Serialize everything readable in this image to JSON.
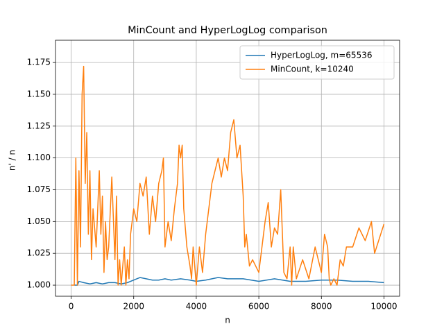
{
  "chart_data": {
    "type": "line",
    "title": "MinCount and HyperLogLog comparison",
    "x_label": "n",
    "y_label": "n' / n",
    "xlim": [
      -500,
      10500
    ],
    "xticks": [
      0,
      2000,
      4000,
      6000,
      8000,
      10000
    ],
    "ylim": [
      0.9913,
      1.1925
    ],
    "yticks": [
      {
        "value": 1.0,
        "label": "1.000"
      },
      {
        "value": 1.025,
        "label": "1.025"
      },
      {
        "value": 1.05,
        "label": "1.050"
      },
      {
        "value": 1.075,
        "label": "1.075"
      },
      {
        "value": 1.1,
        "label": "1.100"
      },
      {
        "value": 1.125,
        "label": "1.125"
      },
      {
        "value": 1.15,
        "label": "1.150"
      },
      {
        "value": 1.175,
        "label": "1.175"
      }
    ],
    "grid": true,
    "legend": "upper right",
    "series": [
      {
        "name": "HyperLogLog, m=65536",
        "color": "#1f77b4",
        "x": [
          100,
          200,
          250,
          400,
          600,
          800,
          1000,
          1200,
          1400,
          1600,
          1800,
          2000,
          2200,
          2400,
          2600,
          2800,
          3000,
          3200,
          3500,
          3800,
          4000,
          4300,
          4700,
          5000,
          5500,
          6000,
          6500,
          7000,
          7500,
          8000,
          8500,
          9000,
          9500,
          10000
        ],
        "values": [
          1.0,
          1.0,
          1.003,
          1.002,
          1.001,
          1.002,
          1.001,
          1.002,
          1.002,
          1.001,
          1.002,
          1.004,
          1.006,
          1.005,
          1.004,
          1.004,
          1.005,
          1.004,
          1.005,
          1.004,
          1.003,
          1.004,
          1.006,
          1.005,
          1.005,
          1.003,
          1.005,
          1.003,
          1.003,
          1.004,
          1.004,
          1.003,
          1.003,
          1.002
        ]
      },
      {
        "name": "MinCount, k=10240",
        "color": "#ff7f0e",
        "x": [
          0,
          100,
          150,
          200,
          250,
          300,
          350,
          400,
          450,
          500,
          550,
          600,
          650,
          700,
          800,
          900,
          950,
          1000,
          1050,
          1100,
          1150,
          1200,
          1300,
          1400,
          1450,
          1500,
          1550,
          1600,
          1700,
          1750,
          1800,
          1850,
          1900,
          2000,
          2100,
          2200,
          2300,
          2400,
          2500,
          2600,
          2700,
          2800,
          2900,
          2950,
          3000,
          3100,
          3200,
          3300,
          3400,
          3450,
          3500,
          3550,
          3600,
          3700,
          3800,
          3850,
          3900,
          4000,
          4100,
          4200,
          4300,
          4400,
          4500,
          4600,
          4700,
          4800,
          4900,
          5000,
          5100,
          5200,
          5300,
          5400,
          5500,
          5550,
          5600,
          5700,
          5800,
          6000,
          6100,
          6200,
          6300,
          6400,
          6500,
          6600,
          6700,
          6800,
          6900,
          7000,
          7050,
          7100,
          7200,
          7400,
          7600,
          7800,
          7900,
          8000,
          8100,
          8200,
          8250,
          8300,
          8400,
          8500,
          8600,
          8700,
          8800,
          9000,
          9200,
          9400,
          9600,
          9700,
          10000
        ],
        "values": [
          1.0,
          1.0,
          1.1,
          1.0,
          1.09,
          1.03,
          1.15,
          1.172,
          1.08,
          1.12,
          1.04,
          1.09,
          1.02,
          1.06,
          1.03,
          1.09,
          1.04,
          1.07,
          1.01,
          1.05,
          1.02,
          1.03,
          1.085,
          1.02,
          1.07,
          1.0,
          1.02,
          1.0,
          1.03,
          1.0,
          1.02,
          1.005,
          1.04,
          1.06,
          1.05,
          1.08,
          1.07,
          1.085,
          1.04,
          1.07,
          1.05,
          1.08,
          1.09,
          1.1,
          1.03,
          1.05,
          1.035,
          1.06,
          1.08,
          1.11,
          1.1,
          1.11,
          1.06,
          1.03,
          1.015,
          1.005,
          1.03,
          1.0,
          1.03,
          1.01,
          1.04,
          1.06,
          1.08,
          1.09,
          1.1,
          1.085,
          1.1,
          1.09,
          1.12,
          1.13,
          1.1,
          1.11,
          1.07,
          1.03,
          1.04,
          1.015,
          1.02,
          1.01,
          1.03,
          1.05,
          1.065,
          1.03,
          1.045,
          1.04,
          1.075,
          1.01,
          1.005,
          1.03,
          1.0,
          1.03,
          1.005,
          1.02,
          1.005,
          1.03,
          1.02,
          1.01,
          1.04,
          1.03,
          1.005,
          1.0,
          1.005,
          1.0,
          1.02,
          1.015,
          1.03,
          1.03,
          1.045,
          1.035,
          1.05,
          1.025,
          1.048
        ]
      }
    ]
  }
}
